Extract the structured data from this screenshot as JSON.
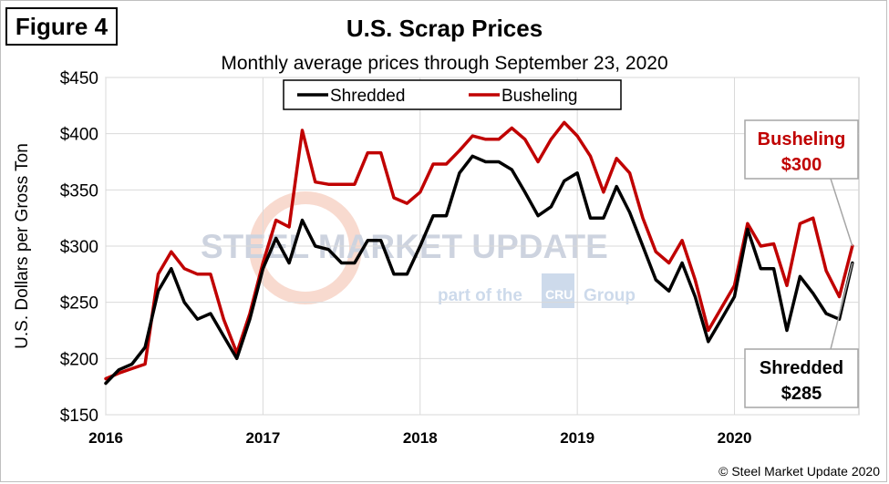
{
  "figure_label": "Figure 4",
  "copyright": "© Steel Market Update 2020",
  "watermark": {
    "main": "STEEL MARKET UPDATE",
    "sub": "part of the",
    "badge": "CRU",
    "group": "Group"
  },
  "chart_data": {
    "type": "line",
    "title": "U.S. Scrap Prices",
    "subtitle": "Monthly average prices through September 23, 2020",
    "ylabel": "U.S. Dollars per Gross Ton",
    "xlabel": "",
    "ylim": [
      150,
      450
    ],
    "yticks": [
      150,
      200,
      250,
      300,
      350,
      400,
      450
    ],
    "ytick_labels": [
      "$150",
      "$200",
      "$250",
      "$300",
      "$350",
      "$400",
      "$450"
    ],
    "xticks": [
      {
        "label": "2016",
        "month_index": 0
      },
      {
        "label": "2017",
        "month_index": 12
      },
      {
        "label": "2018",
        "month_index": 24
      },
      {
        "label": "2019",
        "month_index": 36
      },
      {
        "label": "2020",
        "month_index": 48
      }
    ],
    "x_range": [
      0,
      57
    ],
    "grid": "horizontal and vertical at ticks",
    "legend_position": "top-center",
    "series": [
      {
        "name": "Shredded",
        "color": "#000000",
        "values": [
          178,
          190,
          195,
          210,
          260,
          280,
          250,
          235,
          240,
          220,
          200,
          235,
          280,
          307,
          285,
          323,
          300,
          297,
          285,
          285,
          305,
          305,
          275,
          275,
          300,
          327,
          327,
          365,
          380,
          375,
          375,
          368,
          348,
          327,
          335,
          358,
          365,
          325,
          325,
          353,
          330,
          300,
          270,
          260,
          285,
          255,
          215,
          235,
          255,
          315,
          280,
          280,
          225,
          273,
          258,
          240,
          235,
          285
        ]
      },
      {
        "name": "Busheling",
        "color": "#c00000",
        "values": [
          182,
          187,
          191,
          195,
          275,
          295,
          280,
          275,
          275,
          235,
          205,
          240,
          285,
          323,
          317,
          403,
          357,
          355,
          355,
          355,
          383,
          383,
          343,
          338,
          348,
          373,
          373,
          385,
          398,
          395,
          395,
          405,
          395,
          375,
          395,
          410,
          398,
          380,
          348,
          378,
          365,
          325,
          295,
          285,
          305,
          270,
          225,
          245,
          265,
          320,
          300,
          302,
          265,
          320,
          325,
          278,
          255,
          300
        ]
      }
    ],
    "annotations": [
      {
        "series": "Busheling",
        "line1": "Busheling",
        "line2": "$300"
      },
      {
        "series": "Shredded",
        "line1": "Shredded",
        "line2": "$285"
      }
    ]
  }
}
